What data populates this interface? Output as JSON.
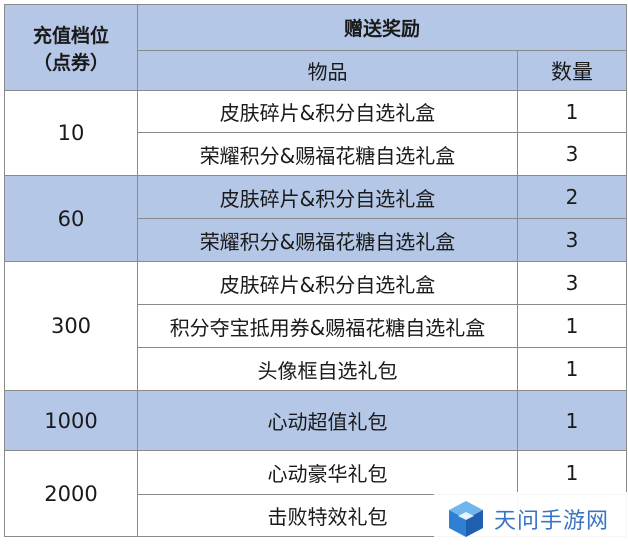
{
  "header": {
    "tier_label_line1": "充值档位",
    "tier_label_line2": "（点券）",
    "reward_label": "赠送奖励",
    "item_label": "物品",
    "qty_label": "数量"
  },
  "tiers": [
    {
      "amount": "10",
      "rows": [
        {
          "item": "皮肤碎片&积分自选礼盒",
          "qty": "1"
        },
        {
          "item": "荣耀积分&赐福花糖自选礼盒",
          "qty": "3"
        }
      ]
    },
    {
      "amount": "60",
      "rows": [
        {
          "item": "皮肤碎片&积分自选礼盒",
          "qty": "2"
        },
        {
          "item": "荣耀积分&赐福花糖自选礼盒",
          "qty": "3"
        }
      ]
    },
    {
      "amount": "300",
      "rows": [
        {
          "item": "皮肤碎片&积分自选礼盒",
          "qty": "3"
        },
        {
          "item": "积分夺宝抵用券&赐福花糖自选礼盒",
          "qty": "1"
        },
        {
          "item": "头像框自选礼包",
          "qty": "1"
        }
      ]
    },
    {
      "amount": "1000",
      "rows": [
        {
          "item": "心动超值礼包",
          "qty": "1"
        }
      ]
    },
    {
      "amount": "2000",
      "rows": [
        {
          "item": "心动豪华礼包",
          "qty": "1"
        },
        {
          "item": "击败特效礼包",
          "qty": ""
        }
      ]
    }
  ],
  "watermark": {
    "text": "天问手游网"
  },
  "colors": {
    "header_bg": "#b4c7e7",
    "shaded_row_bg": "#b4c7e7",
    "border": "#8a8a8a",
    "watermark_text": "#3a74c4"
  }
}
